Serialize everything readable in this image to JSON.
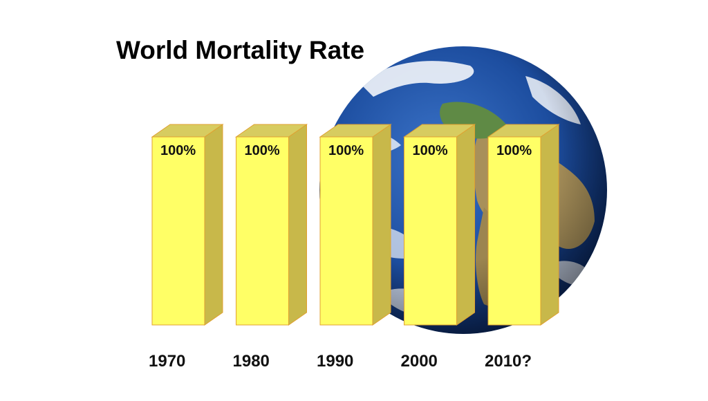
{
  "chart_data": {
    "type": "bar",
    "title": "World Mortality Rate",
    "categories": [
      "1970",
      "1980",
      "1990",
      "2000",
      "2010?"
    ],
    "values": [
      100,
      100,
      100,
      100,
      100
    ],
    "value_labels": [
      "100%",
      "100%",
      "100%",
      "100%",
      "100%"
    ],
    "ylim": [
      0,
      100
    ],
    "style": "3d",
    "grid": false,
    "colors": {
      "bar_front": "#ffff66",
      "bar_side": "#c8b84a",
      "bar_top": "#d7cc60",
      "bar_outline": "#e0a030"
    },
    "background_image": "earth-globe"
  }
}
